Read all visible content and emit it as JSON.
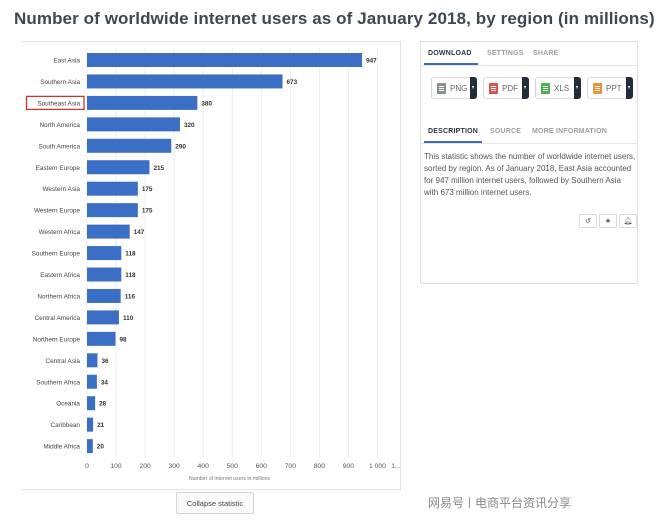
{
  "title": "Number of worldwide internet users as of January 2018, by region (in millions)",
  "colors": {
    "bar": "#3b6fc6",
    "highlight_border": "#c0392b",
    "accent": "#3c6bb8"
  },
  "chart_data": {
    "type": "bar",
    "orientation": "horizontal",
    "title": "Number of worldwide internet users as of January 2018, by region (in millions)",
    "xlabel": "Number of internet users in millions",
    "ylabel": "",
    "xlim": [
      0,
      1050
    ],
    "x_ticks": [
      "0",
      "100",
      "200",
      "300",
      "400",
      "500",
      "600",
      "700",
      "800",
      "900",
      "1 000",
      "1..."
    ],
    "x_tick_values": [
      0,
      100,
      200,
      300,
      400,
      500,
      600,
      700,
      800,
      900,
      1000,
      1100
    ],
    "grid": true,
    "highlighted_category": "Southeast Asia",
    "categories": [
      "East Asia",
      "Southern Asia",
      "Southeast Asia",
      "North America",
      "South America",
      "Eastern Europe",
      "Western Asia",
      "Western Europe",
      "Western Africa",
      "Southern Europe",
      "Eastern Africa",
      "Northern Africa",
      "Central America",
      "Northern Europe",
      "Central Asia",
      "Southern Africa",
      "Oceania",
      "Caribbean",
      "Middle Africa"
    ],
    "values": [
      947,
      673,
      380,
      320,
      290,
      215,
      175,
      175,
      147,
      118,
      118,
      116,
      110,
      98,
      36,
      34,
      28,
      21,
      20
    ]
  },
  "panel": {
    "tabs1": [
      "DOWNLOAD",
      "SETTINGS",
      "SHARE"
    ],
    "downloads": [
      {
        "label": "PNG",
        "icon": "png-file-icon",
        "color": "#8a8f96"
      },
      {
        "label": "PDF",
        "icon": "pdf-file-icon",
        "color": "#d9534f"
      },
      {
        "label": "XLS",
        "icon": "xls-file-icon",
        "color": "#4caf50"
      },
      {
        "label": "PPT",
        "icon": "ppt-file-icon",
        "color": "#e8923a"
      }
    ],
    "tabs2": [
      "DESCRIPTION",
      "SOURCE",
      "MORE INFORMATION"
    ],
    "description": "This statistic shows the number of worldwide internet users, sorted by region. As of January 2018, East Asia accounted for 947 million internet users, followed by Southern Asia with 673 million internet users.",
    "actions": [
      {
        "name": "history-icon",
        "glyph": "↺"
      },
      {
        "name": "star-icon",
        "glyph": "★"
      },
      {
        "name": "bell-icon",
        "glyph": "🔔︎"
      }
    ]
  },
  "collapse_label": "Collapse statistic",
  "watermark": {
    "left": "网易号",
    "right": "电商平台资讯分享"
  }
}
